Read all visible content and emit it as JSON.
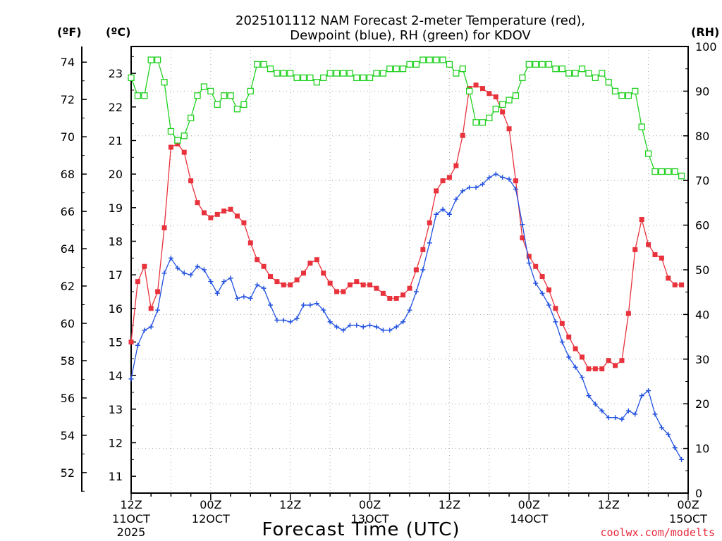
{
  "chart_data": {
    "type": "line",
    "title_line1": "2025101112 NAM Forecast 2-meter Temperature (red),",
    "title_line2": "Dewpoint (blue), RH (green) for KDOV",
    "xlabel": "Forecast Time (UTC)",
    "credit": "coolwx.com/modelts",
    "unit_labels": {
      "fahrenheit": "(ºF)",
      "celsius": "(ºC)",
      "rh": "(RH)"
    },
    "x_range_hours": [
      0,
      84
    ],
    "celsius_range": [
      10.5,
      23.8
    ],
    "rh_range": [
      0,
      100
    ],
    "celsius_ticks": [
      11,
      12,
      13,
      14,
      15,
      16,
      17,
      18,
      19,
      20,
      21,
      22,
      23
    ],
    "fahrenheit_ticks": [
      52,
      54,
      56,
      58,
      60,
      62,
      64,
      66,
      68,
      70,
      72,
      74
    ],
    "rh_ticks": [
      0,
      10,
      20,
      30,
      40,
      50,
      60,
      70,
      80,
      90,
      100
    ],
    "x_ticks": [
      {
        "hour": 0,
        "time": "12Z",
        "date": "11OCT",
        "year": "2025"
      },
      {
        "hour": 12,
        "time": "00Z",
        "date": "12OCT",
        "year": ""
      },
      {
        "hour": 24,
        "time": "12Z",
        "date": "",
        "year": ""
      },
      {
        "hour": 36,
        "time": "00Z",
        "date": "13OCT",
        "year": ""
      },
      {
        "hour": 48,
        "time": "12Z",
        "date": "",
        "year": ""
      },
      {
        "hour": 60,
        "time": "00Z",
        "date": "14OCT",
        "year": ""
      },
      {
        "hour": 72,
        "time": "12Z",
        "date": "",
        "year": ""
      },
      {
        "hour": 84,
        "time": "00Z",
        "date": "15OCT",
        "year": ""
      }
    ],
    "series": [
      {
        "name": "2-meter Temperature",
        "units": "C",
        "color": "#e8323c",
        "marker": "filled-square",
        "values": [
          15.0,
          16.8,
          17.25,
          16.0,
          16.5,
          18.4,
          20.8,
          20.9,
          20.65,
          19.8,
          19.15,
          18.85,
          18.7,
          18.8,
          18.9,
          18.95,
          18.75,
          18.55,
          17.95,
          17.45,
          17.25,
          16.95,
          16.8,
          16.7,
          16.7,
          16.85,
          17.05,
          17.35,
          17.45,
          17.05,
          16.75,
          16.5,
          16.5,
          16.7,
          16.8,
          16.7,
          16.7,
          16.6,
          16.45,
          16.3,
          16.3,
          16.4,
          16.6,
          17.15,
          17.75,
          18.55,
          19.5,
          19.8,
          19.9,
          20.25,
          21.15,
          22.55,
          22.65,
          22.55,
          22.4,
          22.3,
          21.85,
          21.35,
          19.8,
          18.1,
          17.55,
          17.25,
          16.95,
          16.55,
          16.0,
          15.55,
          15.15,
          14.8,
          14.55,
          14.2,
          14.2,
          14.2,
          14.45,
          14.3,
          14.45,
          15.85,
          17.75,
          18.65,
          17.9,
          17.6,
          17.5,
          16.9,
          16.7,
          16.7
        ]
      },
      {
        "name": "Dewpoint",
        "units": "C",
        "color": "#2050e0",
        "marker": "plus",
        "values": [
          13.9,
          14.9,
          15.35,
          15.45,
          15.95,
          17.05,
          17.5,
          17.2,
          17.05,
          17.0,
          17.25,
          17.15,
          16.8,
          16.45,
          16.8,
          16.9,
          16.3,
          16.35,
          16.3,
          16.7,
          16.6,
          16.1,
          15.65,
          15.65,
          15.6,
          15.7,
          16.1,
          16.1,
          16.15,
          15.95,
          15.6,
          15.45,
          15.35,
          15.5,
          15.5,
          15.45,
          15.5,
          15.45,
          15.35,
          15.35,
          15.45,
          15.6,
          15.95,
          16.5,
          17.15,
          17.95,
          18.8,
          18.95,
          18.8,
          19.25,
          19.5,
          19.6,
          19.6,
          19.7,
          19.9,
          20.0,
          19.9,
          19.85,
          19.55,
          18.5,
          17.35,
          16.75,
          16.45,
          16.1,
          15.6,
          15.0,
          14.55,
          14.25,
          13.95,
          13.4,
          13.15,
          12.95,
          12.75,
          12.75,
          12.7,
          12.95,
          12.85,
          13.4,
          13.55,
          12.85,
          12.45,
          12.25,
          11.85,
          11.5
        ]
      },
      {
        "name": "Relative Humidity",
        "units": "%",
        "color": "#20d020",
        "marker": "open-square",
        "values": [
          93,
          89,
          89,
          97,
          97,
          92,
          81,
          79,
          80,
          84,
          89,
          91,
          90,
          87,
          89,
          89,
          86,
          87,
          90,
          96,
          96,
          95,
          94,
          94,
          94,
          93,
          93,
          93,
          92,
          93,
          94,
          94,
          94,
          94,
          93,
          93,
          93,
          94,
          94,
          95,
          95,
          95,
          96,
          96,
          97,
          97,
          97,
          97,
          96,
          94,
          95,
          90,
          83,
          83,
          84,
          86,
          87,
          88,
          89,
          93,
          96,
          96,
          96,
          96,
          95,
          95,
          94,
          94,
          95,
          94,
          93,
          94,
          92,
          90,
          89,
          89,
          90,
          82,
          76,
          72,
          72,
          72,
          72,
          71
        ]
      }
    ]
  }
}
